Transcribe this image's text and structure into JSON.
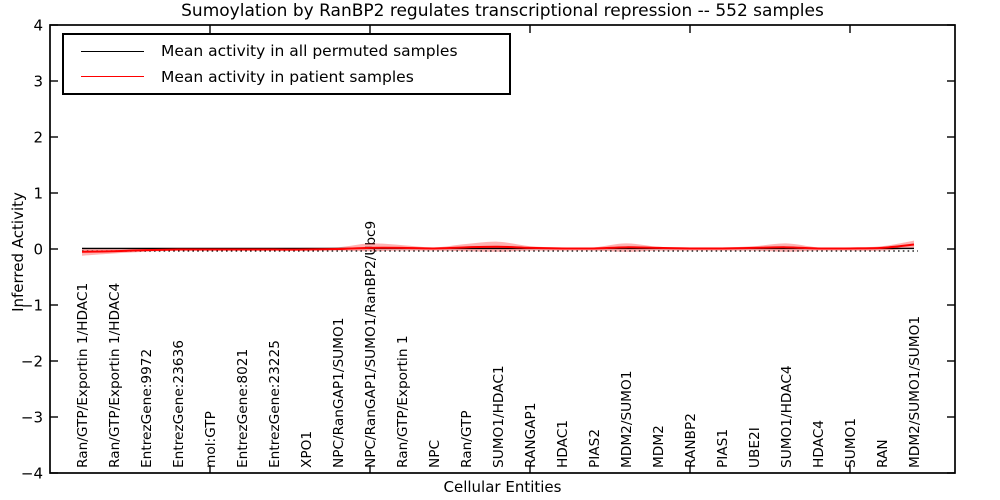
{
  "figure": {
    "title": "Sumoylation by RanBP2 regulates transcriptional repression -- 552 samples",
    "xlabel": "Cellular Entities",
    "ylabel": "Inferred Activity",
    "sample_count": "552"
  },
  "legend": {
    "entries": [
      {
        "label": "Mean activity in all permuted samples",
        "color": "#000000"
      },
      {
        "label": "Mean activity in patient samples",
        "color": "#ff0000"
      }
    ]
  },
  "chart_data": {
    "type": "line",
    "title": "Sumoylation by RanBP2 regulates transcriptional repression -- 552 samples",
    "xlabel": "Cellular Entities",
    "ylabel": "Inferred Activity",
    "ylim": [
      -4,
      4
    ],
    "yticks": [
      -4,
      -3,
      -2,
      -1,
      0,
      1,
      2,
      3,
      4
    ],
    "grid": false,
    "legend_position": "upper left",
    "categories": [
      "Ran/GTP/Exportin 1/HDAC1",
      "Ran/GTP/Exportin 1/HDAC4",
      "EntrezGene:9972",
      "EntrezGene:23636",
      "mol:GTP",
      "EntrezGene:8021",
      "EntrezGene:23225",
      "XPO1",
      "NPC/RanGAP1/SUMO1",
      "NPC/RanGAP1/SUMO1/RanBP2/Ubc9",
      "Ran/GTP/Exportin 1",
      "NPC",
      "Ran/GTP",
      "SUMO1/HDAC1",
      "RANGAP1",
      "HDAC1",
      "PIAS2",
      "MDM2/SUMO1",
      "MDM2",
      "RANBP2",
      "PIAS1",
      "UBE2I",
      "SUMO1/HDAC4",
      "HDAC4",
      "SUMO1",
      "RAN",
      "MDM2/SUMO1/SUMO1"
    ],
    "x_major_tick_indices": [
      4,
      9,
      14,
      19,
      24
    ],
    "series": [
      {
        "name": "Mean activity in all permuted samples",
        "color": "#000000",
        "style": "solid",
        "values": [
          0.01,
          0.01,
          0.01,
          0.01,
          0.01,
          0.01,
          0.01,
          0.01,
          0.01,
          0.01,
          0.01,
          0.01,
          0.01,
          0.01,
          0.01,
          0.01,
          0.01,
          0.01,
          0.01,
          0.01,
          0.01,
          0.01,
          0.01,
          0.01,
          0.01,
          0.01,
          0.01
        ]
      },
      {
        "name": "Mean activity in patient samples",
        "color": "#ff0000",
        "style": "solid",
        "values": [
          -0.05,
          -0.04,
          -0.02,
          -0.01,
          -0.01,
          -0.01,
          -0.01,
          -0.01,
          0.0,
          0.02,
          0.02,
          0.01,
          0.03,
          0.04,
          0.02,
          0.01,
          0.01,
          0.03,
          0.02,
          0.01,
          0.01,
          0.02,
          0.03,
          0.01,
          0.01,
          0.02,
          0.08
        ]
      }
    ],
    "patient_band": {
      "fill": "rgba(255,0,0,0.3)",
      "upper": [
        0.02,
        0.01,
        0.01,
        0.01,
        0.01,
        0.01,
        0.01,
        0.02,
        0.03,
        0.1,
        0.07,
        0.03,
        0.09,
        0.13,
        0.05,
        0.03,
        0.03,
        0.1,
        0.04,
        0.03,
        0.03,
        0.05,
        0.1,
        0.03,
        0.03,
        0.05,
        0.15
      ],
      "lower": [
        -0.12,
        -0.08,
        -0.05,
        -0.03,
        -0.03,
        -0.03,
        -0.03,
        -0.03,
        -0.03,
        -0.04,
        -0.03,
        -0.03,
        -0.04,
        -0.05,
        -0.03,
        -0.03,
        -0.03,
        -0.05,
        -0.03,
        -0.03,
        -0.03,
        -0.03,
        -0.05,
        -0.03,
        -0.03,
        -0.03,
        0.02
      ]
    },
    "zero_line": {
      "y": 0,
      "style": "dotted",
      "color": "#000000"
    }
  },
  "colors": {
    "frame": "#000000",
    "background": "#ffffff"
  }
}
